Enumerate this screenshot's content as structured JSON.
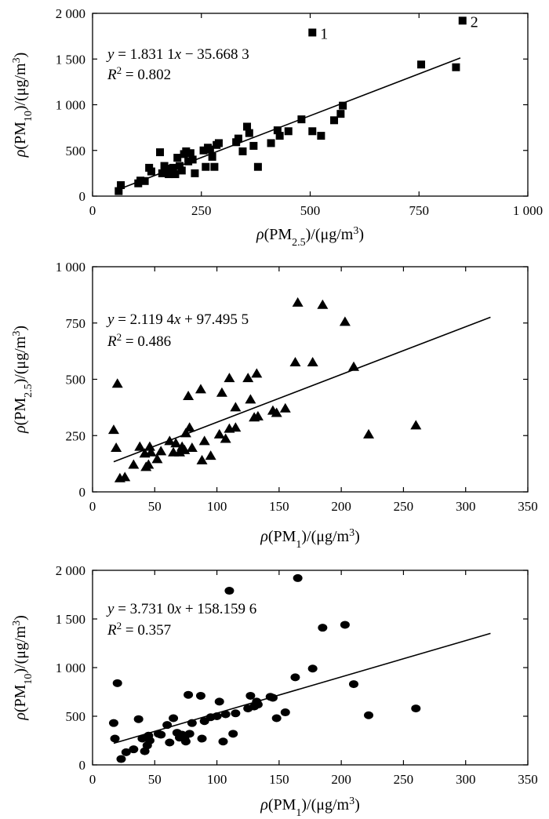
{
  "chart_data": [
    {
      "type": "scatter",
      "marker": "square",
      "xlabel": {
        "pre": "ρ(PM",
        "sub": "2.5",
        "post": ")/(μg/m",
        "sup": "3",
        "end": ")"
      },
      "ylabel": {
        "pre": "ρ(PM",
        "sub": "10",
        "post": ")/(μg/m",
        "sup": "3",
        "end": ")"
      },
      "xlim": [
        0,
        1000
      ],
      "ylim": [
        0,
        2000
      ],
      "xticks": [
        0,
        250,
        500,
        750,
        1000
      ],
      "xtick_labels": [
        "0",
        "250",
        "500",
        "750",
        "1 000"
      ],
      "yticks": [
        0,
        500,
        1000,
        1500,
        2000
      ],
      "ytick_labels": [
        "0",
        "500",
        "1 000",
        "1 500",
        "2 000"
      ],
      "equation": {
        "y_label": "y",
        "eq_text": " = 1.831 1x − 35.668 3",
        "r2_base": "R",
        "r2_sup": "2",
        "r2_value": " = 0.802"
      },
      "fit": {
        "slope": 1.8311,
        "intercept": -35.6683,
        "x_range": [
          60,
          845
        ]
      },
      "annotations": [
        {
          "text": "1",
          "x": 505,
          "y": 1790
        },
        {
          "text": "2",
          "x": 850,
          "y": 1920
        }
      ],
      "points": [
        [
          60,
          55
        ],
        [
          65,
          120
        ],
        [
          105,
          140
        ],
        [
          110,
          170
        ],
        [
          120,
          165
        ],
        [
          130,
          310
        ],
        [
          135,
          270
        ],
        [
          155,
          480
        ],
        [
          160,
          250
        ],
        [
          165,
          330
        ],
        [
          170,
          300
        ],
        [
          175,
          240
        ],
        [
          180,
          260
        ],
        [
          185,
          310
        ],
        [
          190,
          240
        ],
        [
          195,
          420
        ],
        [
          200,
          330
        ],
        [
          205,
          280
        ],
        [
          210,
          460
        ],
        [
          215,
          490
        ],
        [
          220,
          380
        ],
        [
          225,
          470
        ],
        [
          230,
          400
        ],
        [
          235,
          250
        ],
        [
          255,
          500
        ],
        [
          260,
          320
        ],
        [
          265,
          530
        ],
        [
          270,
          510
        ],
        [
          275,
          430
        ],
        [
          280,
          320
        ],
        [
          285,
          560
        ],
        [
          290,
          580
        ],
        [
          330,
          590
        ],
        [
          335,
          630
        ],
        [
          345,
          490
        ],
        [
          355,
          760
        ],
        [
          360,
          690
        ],
        [
          370,
          550
        ],
        [
          380,
          320
        ],
        [
          410,
          580
        ],
        [
          425,
          720
        ],
        [
          430,
          660
        ],
        [
          450,
          710
        ],
        [
          480,
          840
        ],
        [
          505,
          710
        ],
        [
          525,
          660
        ],
        [
          555,
          830
        ],
        [
          570,
          900
        ],
        [
          575,
          990
        ],
        [
          505,
          1790
        ],
        [
          755,
          1440
        ],
        [
          835,
          1410
        ],
        [
          850,
          1920
        ]
      ]
    },
    {
      "type": "scatter",
      "marker": "triangle",
      "xlabel": {
        "pre": "ρ(PM",
        "sub": "1",
        "post": ")/(μg/m",
        "sup": "3",
        "end": ")"
      },
      "ylabel": {
        "pre": "ρ(PM",
        "sub": "2.5",
        "post": ")/(μg/m",
        "sup": "3",
        "end": ")"
      },
      "xlim": [
        0,
        350
      ],
      "ylim": [
        0,
        1000
      ],
      "xticks": [
        0,
        50,
        100,
        150,
        200,
        250,
        300,
        350
      ],
      "xtick_labels": [
        "0",
        "50",
        "100",
        "150",
        "200",
        "250",
        "300",
        "350"
      ],
      "yticks": [
        0,
        250,
        500,
        750,
        1000
      ],
      "ytick_labels": [
        "0",
        "250",
        "500",
        "750",
        "1 000"
      ],
      "equation": {
        "y_label": "y",
        "eq_text": " = 2.119 4x + 97.495 5",
        "r2_base": "R",
        "r2_sup": "2",
        "r2_value": " = 0.486"
      },
      "fit": {
        "slope": 2.1194,
        "intercept": 97.4955,
        "x_range": [
          17,
          320
        ]
      },
      "annotations": [],
      "points": [
        [
          17,
          275
        ],
        [
          19,
          195
        ],
        [
          20,
          480
        ],
        [
          22,
          60
        ],
        [
          26,
          65
        ],
        [
          33,
          120
        ],
        [
          38,
          200
        ],
        [
          42,
          170
        ],
        [
          43,
          110
        ],
        [
          45,
          120
        ],
        [
          46,
          200
        ],
        [
          47,
          175
        ],
        [
          52,
          145
        ],
        [
          55,
          180
        ],
        [
          62,
          225
        ],
        [
          65,
          175
        ],
        [
          67,
          215
        ],
        [
          70,
          175
        ],
        [
          72,
          200
        ],
        [
          74,
          185
        ],
        [
          75,
          260
        ],
        [
          77,
          425
        ],
        [
          78,
          285
        ],
        [
          80,
          195
        ],
        [
          87,
          455
        ],
        [
          88,
          140
        ],
        [
          90,
          225
        ],
        [
          95,
          160
        ],
        [
          102,
          255
        ],
        [
          104,
          440
        ],
        [
          107,
          235
        ],
        [
          110,
          280
        ],
        [
          110,
          505
        ],
        [
          115,
          375
        ],
        [
          115,
          285
        ],
        [
          125,
          505
        ],
        [
          127,
          410
        ],
        [
          130,
          330
        ],
        [
          132,
          525
        ],
        [
          133,
          335
        ],
        [
          145,
          360
        ],
        [
          148,
          350
        ],
        [
          155,
          370
        ],
        [
          163,
          575
        ],
        [
          165,
          840
        ],
        [
          177,
          575
        ],
        [
          185,
          830
        ],
        [
          203,
          755
        ],
        [
          210,
          555
        ],
        [
          222,
          255
        ],
        [
          260,
          295
        ]
      ]
    },
    {
      "type": "scatter",
      "marker": "circle",
      "xlabel": {
        "pre": "ρ(PM",
        "sub": "1",
        "post": ")/(μg/m",
        "sup": "3",
        "end": ")"
      },
      "ylabel": {
        "pre": "ρ(PM",
        "sub": "10",
        "post": ")/(μg/m",
        "sup": "3",
        "end": ")"
      },
      "xlim": [
        0,
        350
      ],
      "ylim": [
        0,
        2000
      ],
      "xticks": [
        0,
        50,
        100,
        150,
        200,
        250,
        300,
        350
      ],
      "xtick_labels": [
        "0",
        "50",
        "100",
        "150",
        "200",
        "250",
        "300",
        "350"
      ],
      "yticks": [
        0,
        500,
        1000,
        1500,
        2000
      ],
      "ytick_labels": [
        "0",
        "500",
        "1 000",
        "1 500",
        "2 000"
      ],
      "equation": {
        "y_label": "y",
        "eq_text": " = 3.731 0x + 158.159 6",
        "r2_base": "R",
        "r2_sup": "2",
        "r2_value": " = 0.357"
      },
      "fit": {
        "slope": 3.731,
        "intercept": 158.1596,
        "x_range": [
          17,
          320
        ]
      },
      "annotations": [],
      "points": [
        [
          17,
          430
        ],
        [
          18,
          270
        ],
        [
          20,
          840
        ],
        [
          23,
          60
        ],
        [
          27,
          130
        ],
        [
          33,
          160
        ],
        [
          37,
          470
        ],
        [
          40,
          270
        ],
        [
          42,
          140
        ],
        [
          44,
          200
        ],
        [
          45,
          300
        ],
        [
          46,
          250
        ],
        [
          53,
          320
        ],
        [
          55,
          310
        ],
        [
          60,
          410
        ],
        [
          62,
          230
        ],
        [
          65,
          480
        ],
        [
          68,
          330
        ],
        [
          70,
          280
        ],
        [
          72,
          310
        ],
        [
          74,
          270
        ],
        [
          75,
          240
        ],
        [
          77,
          720
        ],
        [
          78,
          320
        ],
        [
          80,
          430
        ],
        [
          87,
          710
        ],
        [
          88,
          270
        ],
        [
          90,
          450
        ],
        [
          95,
          490
        ],
        [
          100,
          500
        ],
        [
          102,
          650
        ],
        [
          105,
          240
        ],
        [
          107,
          520
        ],
        [
          110,
          1790
        ],
        [
          113,
          320
        ],
        [
          115,
          530
        ],
        [
          125,
          580
        ],
        [
          127,
          710
        ],
        [
          130,
          600
        ],
        [
          132,
          650
        ],
        [
          133,
          620
        ],
        [
          143,
          700
        ],
        [
          145,
          690
        ],
        [
          148,
          480
        ],
        [
          155,
          540
        ],
        [
          163,
          900
        ],
        [
          165,
          1920
        ],
        [
          177,
          990
        ],
        [
          185,
          1410
        ],
        [
          203,
          1440
        ],
        [
          210,
          830
        ],
        [
          222,
          510
        ],
        [
          260,
          580
        ]
      ]
    }
  ]
}
